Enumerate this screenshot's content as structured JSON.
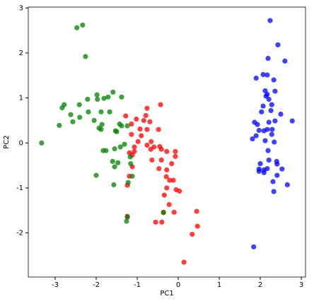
{
  "chart_data": {
    "type": "scatter",
    "xlabel": "PC1",
    "ylabel": "PC2",
    "xlim": [
      -3.655,
      3.103
    ],
    "ylim": [
      -2.98,
      3.02
    ],
    "xticks": [
      -3,
      -2,
      -1,
      0,
      1,
      2,
      3
    ],
    "yticks": [
      -2,
      -1,
      0,
      1,
      2,
      3
    ],
    "series": [
      {
        "color": "#0000ff",
        "x": [
          2.24,
          2.43,
          2.6,
          2.19,
          2.07,
          2.17,
          1.9,
          2.33,
          2.12,
          2.17,
          2.36,
          2.14,
          2.21,
          2.28,
          2.07,
          2.26,
          2.5,
          2.03,
          2.78,
          2.21,
          2.36,
          1.86,
          1.93,
          1.97,
          2.09,
          2.17,
          2.29,
          2.28,
          1.9,
          1.81,
          2.34,
          2.19,
          2.21,
          2.41,
          2.0,
          2.09,
          1.97,
          1.97,
          2.17,
          2.53,
          2.41,
          2.09,
          2.31,
          2.66,
          2.33,
          1.84,
          2.4,
          2.12
        ],
        "values": [
          2.72,
          2.18,
          1.82,
          1.88,
          1.52,
          1.51,
          1.44,
          1.4,
          1.16,
          1.08,
          1.15,
          1.04,
          0.97,
          0.85,
          0.82,
          0.72,
          0.64,
          0.69,
          0.49,
          0.46,
          0.49,
          0.46,
          0.41,
          0.28,
          0.27,
          0.3,
          0.3,
          0.19,
          0.16,
          0.09,
          0.02,
          -0.17,
          -0.38,
          -0.47,
          -0.46,
          -0.6,
          -0.58,
          -0.63,
          -0.57,
          -0.58,
          -0.72,
          -0.66,
          -0.86,
          -0.93,
          -1.08,
          -2.31,
          -0.41,
          0.05
        ]
      },
      {
        "color": "#ff0000",
        "x": [
          -0.43,
          -0.76,
          -0.79,
          -1.28,
          -1.02,
          -1.14,
          -0.84,
          -0.69,
          -0.93,
          -0.76,
          -0.48,
          -0.9,
          -1.14,
          -0.98,
          -0.66,
          -0.76,
          -0.45,
          -0.59,
          -1.07,
          -1.19,
          -0.07,
          -0.67,
          -0.41,
          -0.28,
          -1.07,
          -1.12,
          -0.64,
          -0.41,
          -0.07,
          -0.16,
          -0.47,
          -0.28,
          -1.12,
          -1.19,
          -0.29,
          -0.21,
          -0.12,
          -0.28,
          -1.24,
          -0.05,
          0.03,
          -0.34,
          -0.22,
          -0.1,
          -0.36,
          0.45,
          -0.55,
          -0.4,
          -1.24,
          0.47,
          0.34,
          0.14
        ],
        "values": [
          0.85,
          0.77,
          0.61,
          0.6,
          0.53,
          0.42,
          0.5,
          0.47,
          0.31,
          0.3,
          0.3,
          0.16,
          0.19,
          0.03,
          0.03,
          -0.05,
          -0.08,
          -0.09,
          -0.09,
          -0.22,
          -0.19,
          -0.14,
          -0.14,
          -0.19,
          -0.19,
          -0.27,
          -0.38,
          -0.38,
          -0.3,
          -0.46,
          -0.57,
          -0.6,
          -0.53,
          -0.74,
          -0.75,
          -0.83,
          -0.83,
          -1.0,
          -0.94,
          -1.04,
          -1.07,
          -1.16,
          -1.37,
          -1.54,
          -1.54,
          -1.52,
          -1.76,
          -1.76,
          -1.63,
          -1.85,
          -2.03,
          -2.65
        ]
      },
      {
        "color": "#008000",
        "x": [
          -2.33,
          -2.47,
          -2.26,
          -3.33,
          -2.78,
          -2.83,
          -2.41,
          -2.9,
          -2.62,
          -2.21,
          -1.98,
          -1.97,
          -1.81,
          -1.71,
          -1.59,
          -1.38,
          -1.88,
          -1.67,
          -2.19,
          -2.4,
          -2.57,
          -2.05,
          -1.86,
          -1.43,
          -1.93,
          -1.88,
          -1.53,
          -1.5,
          -1.38,
          -1.24,
          -1.83,
          -1.76,
          -1.55,
          -1.31,
          -1.41,
          -1.47,
          -1.6,
          -1.17,
          -1.55,
          -1.16,
          -1.12,
          -1.22,
          -1.57,
          -2.0,
          -0.36,
          -1.26,
          -1.24
        ],
        "values": [
          2.62,
          2.56,
          1.92,
          0.0,
          0.85,
          0.78,
          0.85,
          0.39,
          0.63,
          0.97,
          1.07,
          0.97,
          0.99,
          1.02,
          1.13,
          1.02,
          0.69,
          0.69,
          0.69,
          0.57,
          0.47,
          0.5,
          0.41,
          0.42,
          0.33,
          0.3,
          0.27,
          0.25,
          0.38,
          0.38,
          -0.17,
          -0.17,
          -0.13,
          -0.03,
          -0.09,
          -0.44,
          -0.41,
          -0.31,
          -0.53,
          -0.46,
          -0.74,
          -0.88,
          -0.93,
          -0.72,
          -1.55,
          -1.74,
          -1.65
        ]
      }
    ]
  }
}
